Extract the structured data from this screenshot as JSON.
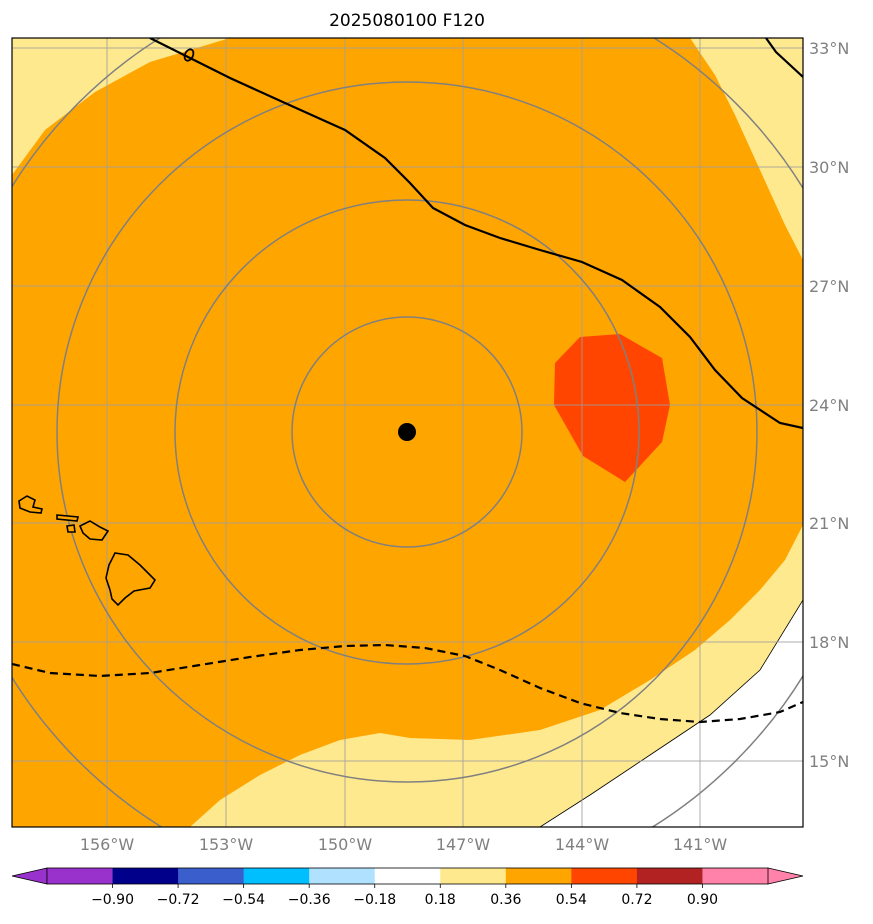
{
  "title": "2025080100 F120",
  "map": {
    "lat_labels": [
      "33°N",
      "30°N",
      "27°N",
      "24°N",
      "21°N",
      "18°N",
      "15°N"
    ],
    "lon_labels": [
      "156°W",
      "153°W",
      "150°W",
      "147°W",
      "144°W",
      "141°W"
    ],
    "storm_center_marker": "black-dot",
    "fill_colors": {
      "light": "#ffe98e",
      "mid": "#ffa500",
      "high": "#ff4500",
      "land": "#ffffff"
    },
    "range_ring_color": "#808080",
    "coast_color": "#000000"
  },
  "colorbar": {
    "colors": [
      "#9932cc",
      "#00008b",
      "#3a5fcd",
      "#00bfff",
      "#b0e2ff",
      "#ffffff",
      "#ffe98e",
      "#ffa500",
      "#ff4500",
      "#b22222",
      "#ff82ab"
    ],
    "under_color": "#9932cc",
    "over_color": "#ff82ab",
    "tick_labels": [
      "−0.90",
      "−0.72",
      "−0.54",
      "−0.36",
      "−0.18",
      "0.18",
      "0.36",
      "0.54",
      "0.72",
      "0.90"
    ]
  }
}
